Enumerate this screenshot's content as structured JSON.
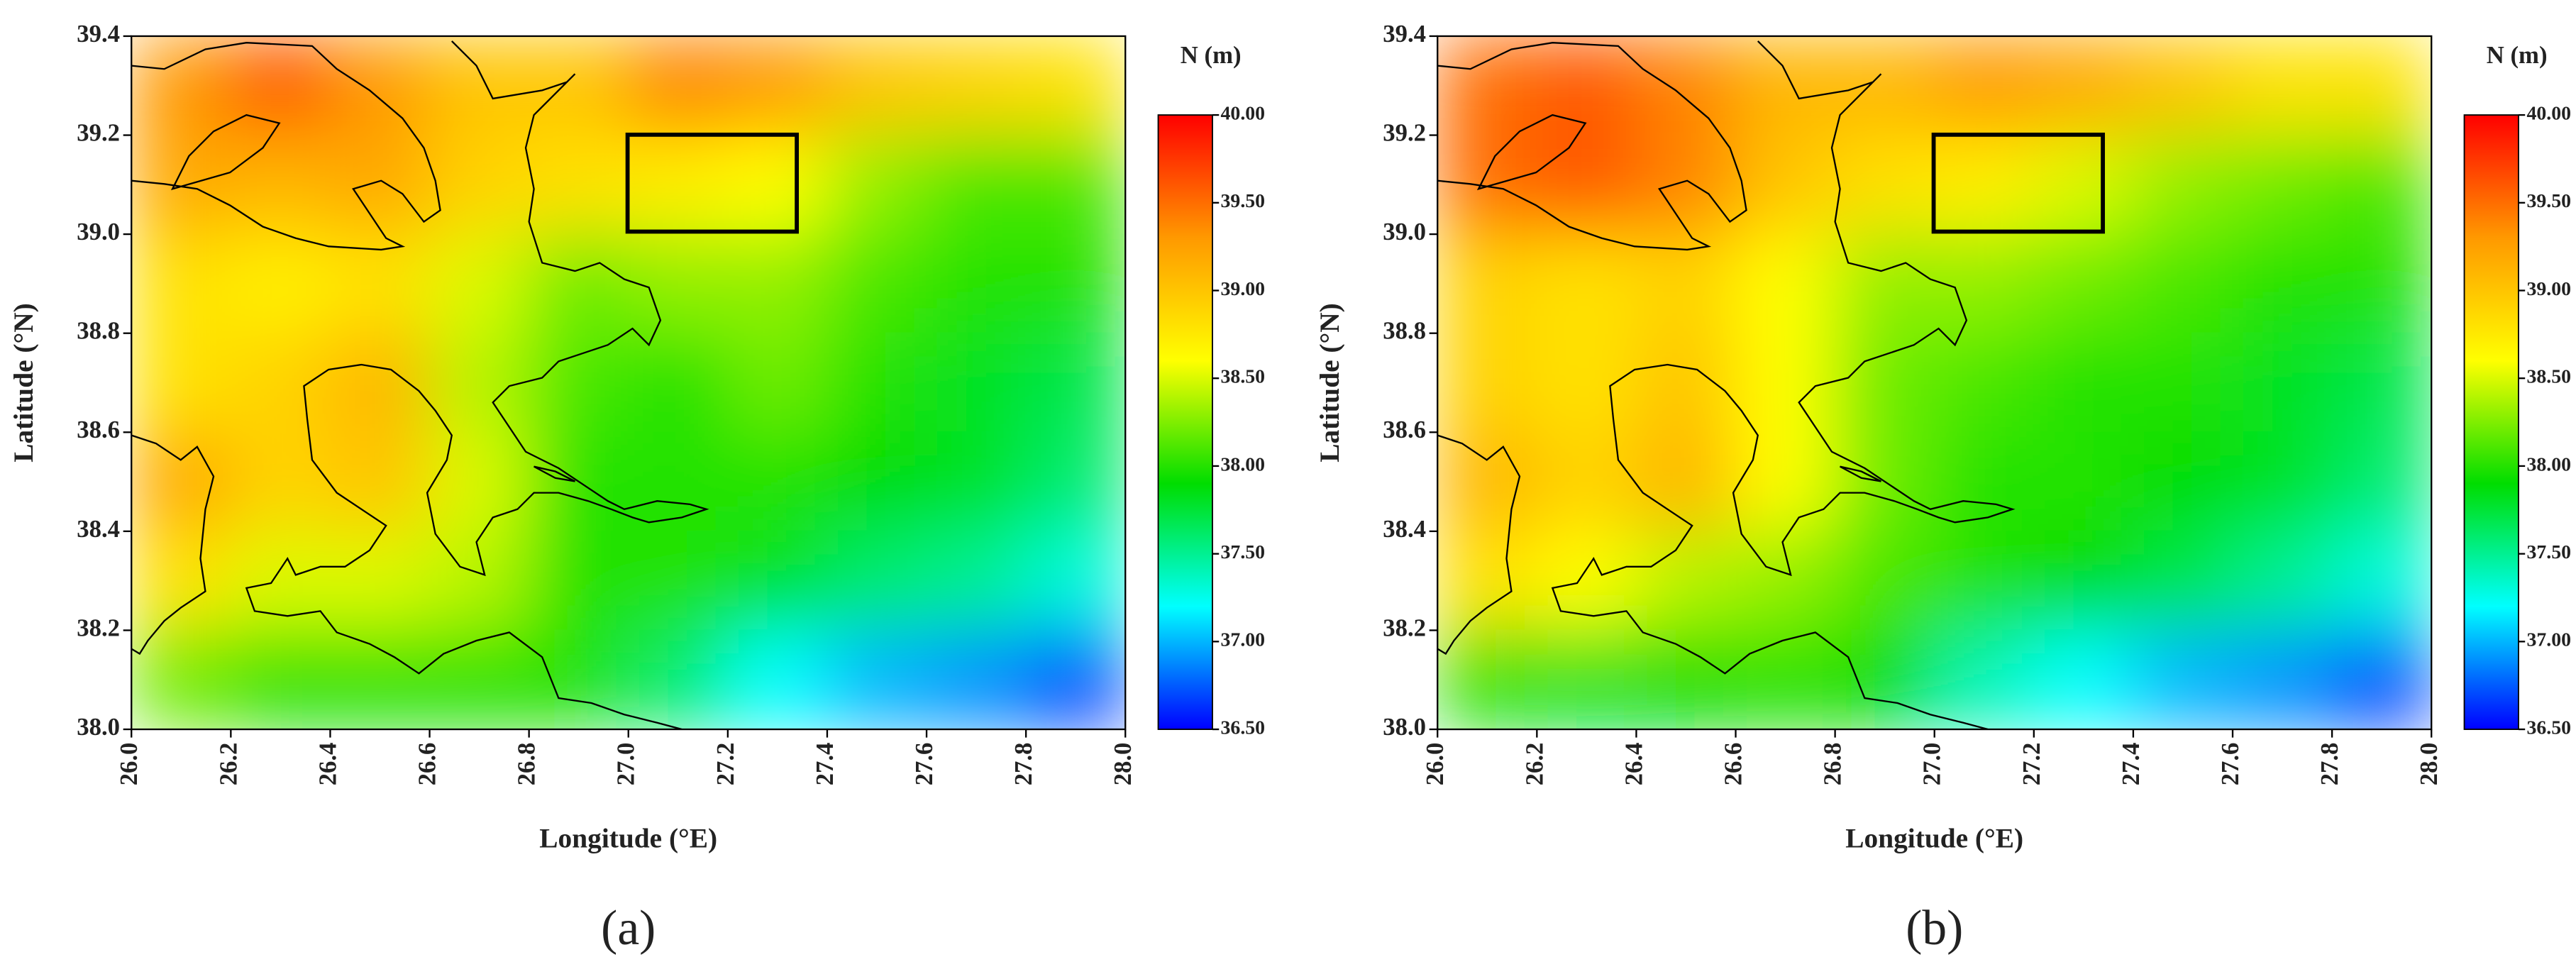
{
  "chart_data": [
    {
      "type": "heatmap",
      "caption": "(a)",
      "xlabel": "Longitude (°E)",
      "ylabel": "Latitude (°N)",
      "colorbar_label": "N (m)",
      "xlim": [
        26,
        28
      ],
      "ylim": [
        38,
        39.4
      ],
      "xticks": [
        {
          "value": 26,
          "label": "26.0"
        },
        26.2,
        26.4,
        26.6,
        26.8,
        {
          "value": 27,
          "label": "27.0"
        },
        27.2,
        27.4,
        27.6,
        27.8,
        {
          "value": 28,
          "label": "28.0"
        }
      ],
      "yticks": [
        {
          "value": 38,
          "label": "38.0"
        },
        38.2,
        38.4,
        38.6,
        38.8,
        {
          "value": 39,
          "label": "39.0"
        },
        39.2,
        39.4
      ],
      "z": [
        [
          39.3,
          39.6,
          39.3,
          39.0,
          39.0,
          39.4,
          39.3,
          39.0,
          38.9,
          38.8
        ],
        [
          39.2,
          39.1,
          39.2,
          38.9,
          38.8,
          38.7,
          38.6,
          38.3,
          38.1,
          38.1
        ],
        [
          38.8,
          38.7,
          38.8,
          38.5,
          38.2,
          38.3,
          38.3,
          38.1,
          38.0,
          38.0
        ],
        [
          38.8,
          38.9,
          39.1,
          38.4,
          38.1,
          38.0,
          38.2,
          38.0,
          37.8,
          37.7
        ],
        [
          39.2,
          38.9,
          39.0,
          38.5,
          38.0,
          38.0,
          38.0,
          37.9,
          37.8,
          37.6
        ],
        [
          38.8,
          38.5,
          38.5,
          38.4,
          38.0,
          38.0,
          37.8,
          37.6,
          37.5,
          37.3
        ],
        [
          38.2,
          38.0,
          38.0,
          38.0,
          38.0,
          37.6,
          37.2,
          37.0,
          36.9,
          36.7
        ]
      ],
      "colorbar_lim": [
        36.5,
        40
      ],
      "colorbar_ticks": [
        {
          "value": 36.5,
          "label": "36.50"
        },
        {
          "value": 37,
          "label": "37.00"
        },
        {
          "value": 37.5,
          "label": "37.50"
        },
        {
          "value": 38,
          "label": "38.00"
        },
        {
          "value": 38.5,
          "label": "38.50"
        },
        {
          "value": 39,
          "label": "39.00"
        },
        {
          "value": 39.5,
          "label": "39.50"
        },
        {
          "value": 40,
          "label": "40.00"
        }
      ],
      "colormap": [
        "#0000ff",
        "#00ffff",
        "#00dd00",
        "#ffff00",
        "#ff9900",
        "#ff0000"
      ]
    },
    {
      "type": "heatmap",
      "caption": "(b)",
      "xlabel": "Longitude (°E)",
      "ylabel": "Latitude (°N)",
      "colorbar_label": "N (m)",
      "xlim": [
        26,
        28
      ],
      "ylim": [
        38,
        39.4
      ],
      "xticks": [
        {
          "value": 26,
          "label": "26.0"
        },
        26.2,
        26.4,
        26.6,
        26.8,
        {
          "value": 27,
          "label": "27.0"
        },
        27.2,
        27.4,
        27.6,
        27.8,
        {
          "value": 28,
          "label": "28.0"
        }
      ],
      "yticks": [
        {
          "value": 38,
          "label": "38.0"
        },
        38.2,
        38.4,
        38.6,
        38.8,
        {
          "value": 39,
          "label": "39.0"
        },
        39.2,
        39.4
      ],
      "z": [
        [
          39.5,
          39.6,
          39.4,
          39.1,
          39.1,
          39.3,
          39.2,
          39.0,
          38.8,
          38.8
        ],
        [
          39.5,
          39.6,
          39.4,
          39.0,
          38.8,
          38.7,
          38.5,
          38.3,
          38.2,
          38.1
        ],
        [
          38.9,
          38.8,
          38.9,
          38.6,
          38.3,
          38.3,
          38.2,
          38.1,
          38.0,
          38.0
        ],
        [
          38.9,
          38.8,
          39.0,
          38.6,
          38.2,
          38.1,
          38.0,
          38.0,
          37.8,
          37.7
        ],
        [
          39.1,
          38.9,
          39.1,
          38.6,
          38.2,
          38.0,
          38.0,
          37.9,
          37.8,
          37.6
        ],
        [
          38.8,
          38.6,
          38.4,
          38.3,
          38.1,
          38.0,
          37.9,
          37.7,
          37.5,
          37.3
        ],
        [
          38.0,
          37.8,
          37.9,
          38.0,
          37.9,
          37.4,
          37.2,
          37.0,
          36.9,
          36.7
        ]
      ],
      "colorbar_lim": [
        36.5,
        40
      ],
      "colorbar_ticks": [
        {
          "value": 36.5,
          "label": "36.50"
        },
        {
          "value": 37,
          "label": "37.00"
        },
        {
          "value": 37.5,
          "label": "37.50"
        },
        {
          "value": 38,
          "label": "38.00"
        },
        {
          "value": 38.5,
          "label": "38.50"
        },
        {
          "value": 39,
          "label": "39.00"
        },
        {
          "value": 39.5,
          "label": "39.50"
        },
        {
          "value": 40,
          "label": "40.00"
        }
      ],
      "colormap": [
        "#0000ff",
        "#00ffff",
        "#00dd00",
        "#ffff00",
        "#ff9900",
        "#ff0000"
      ]
    }
  ]
}
